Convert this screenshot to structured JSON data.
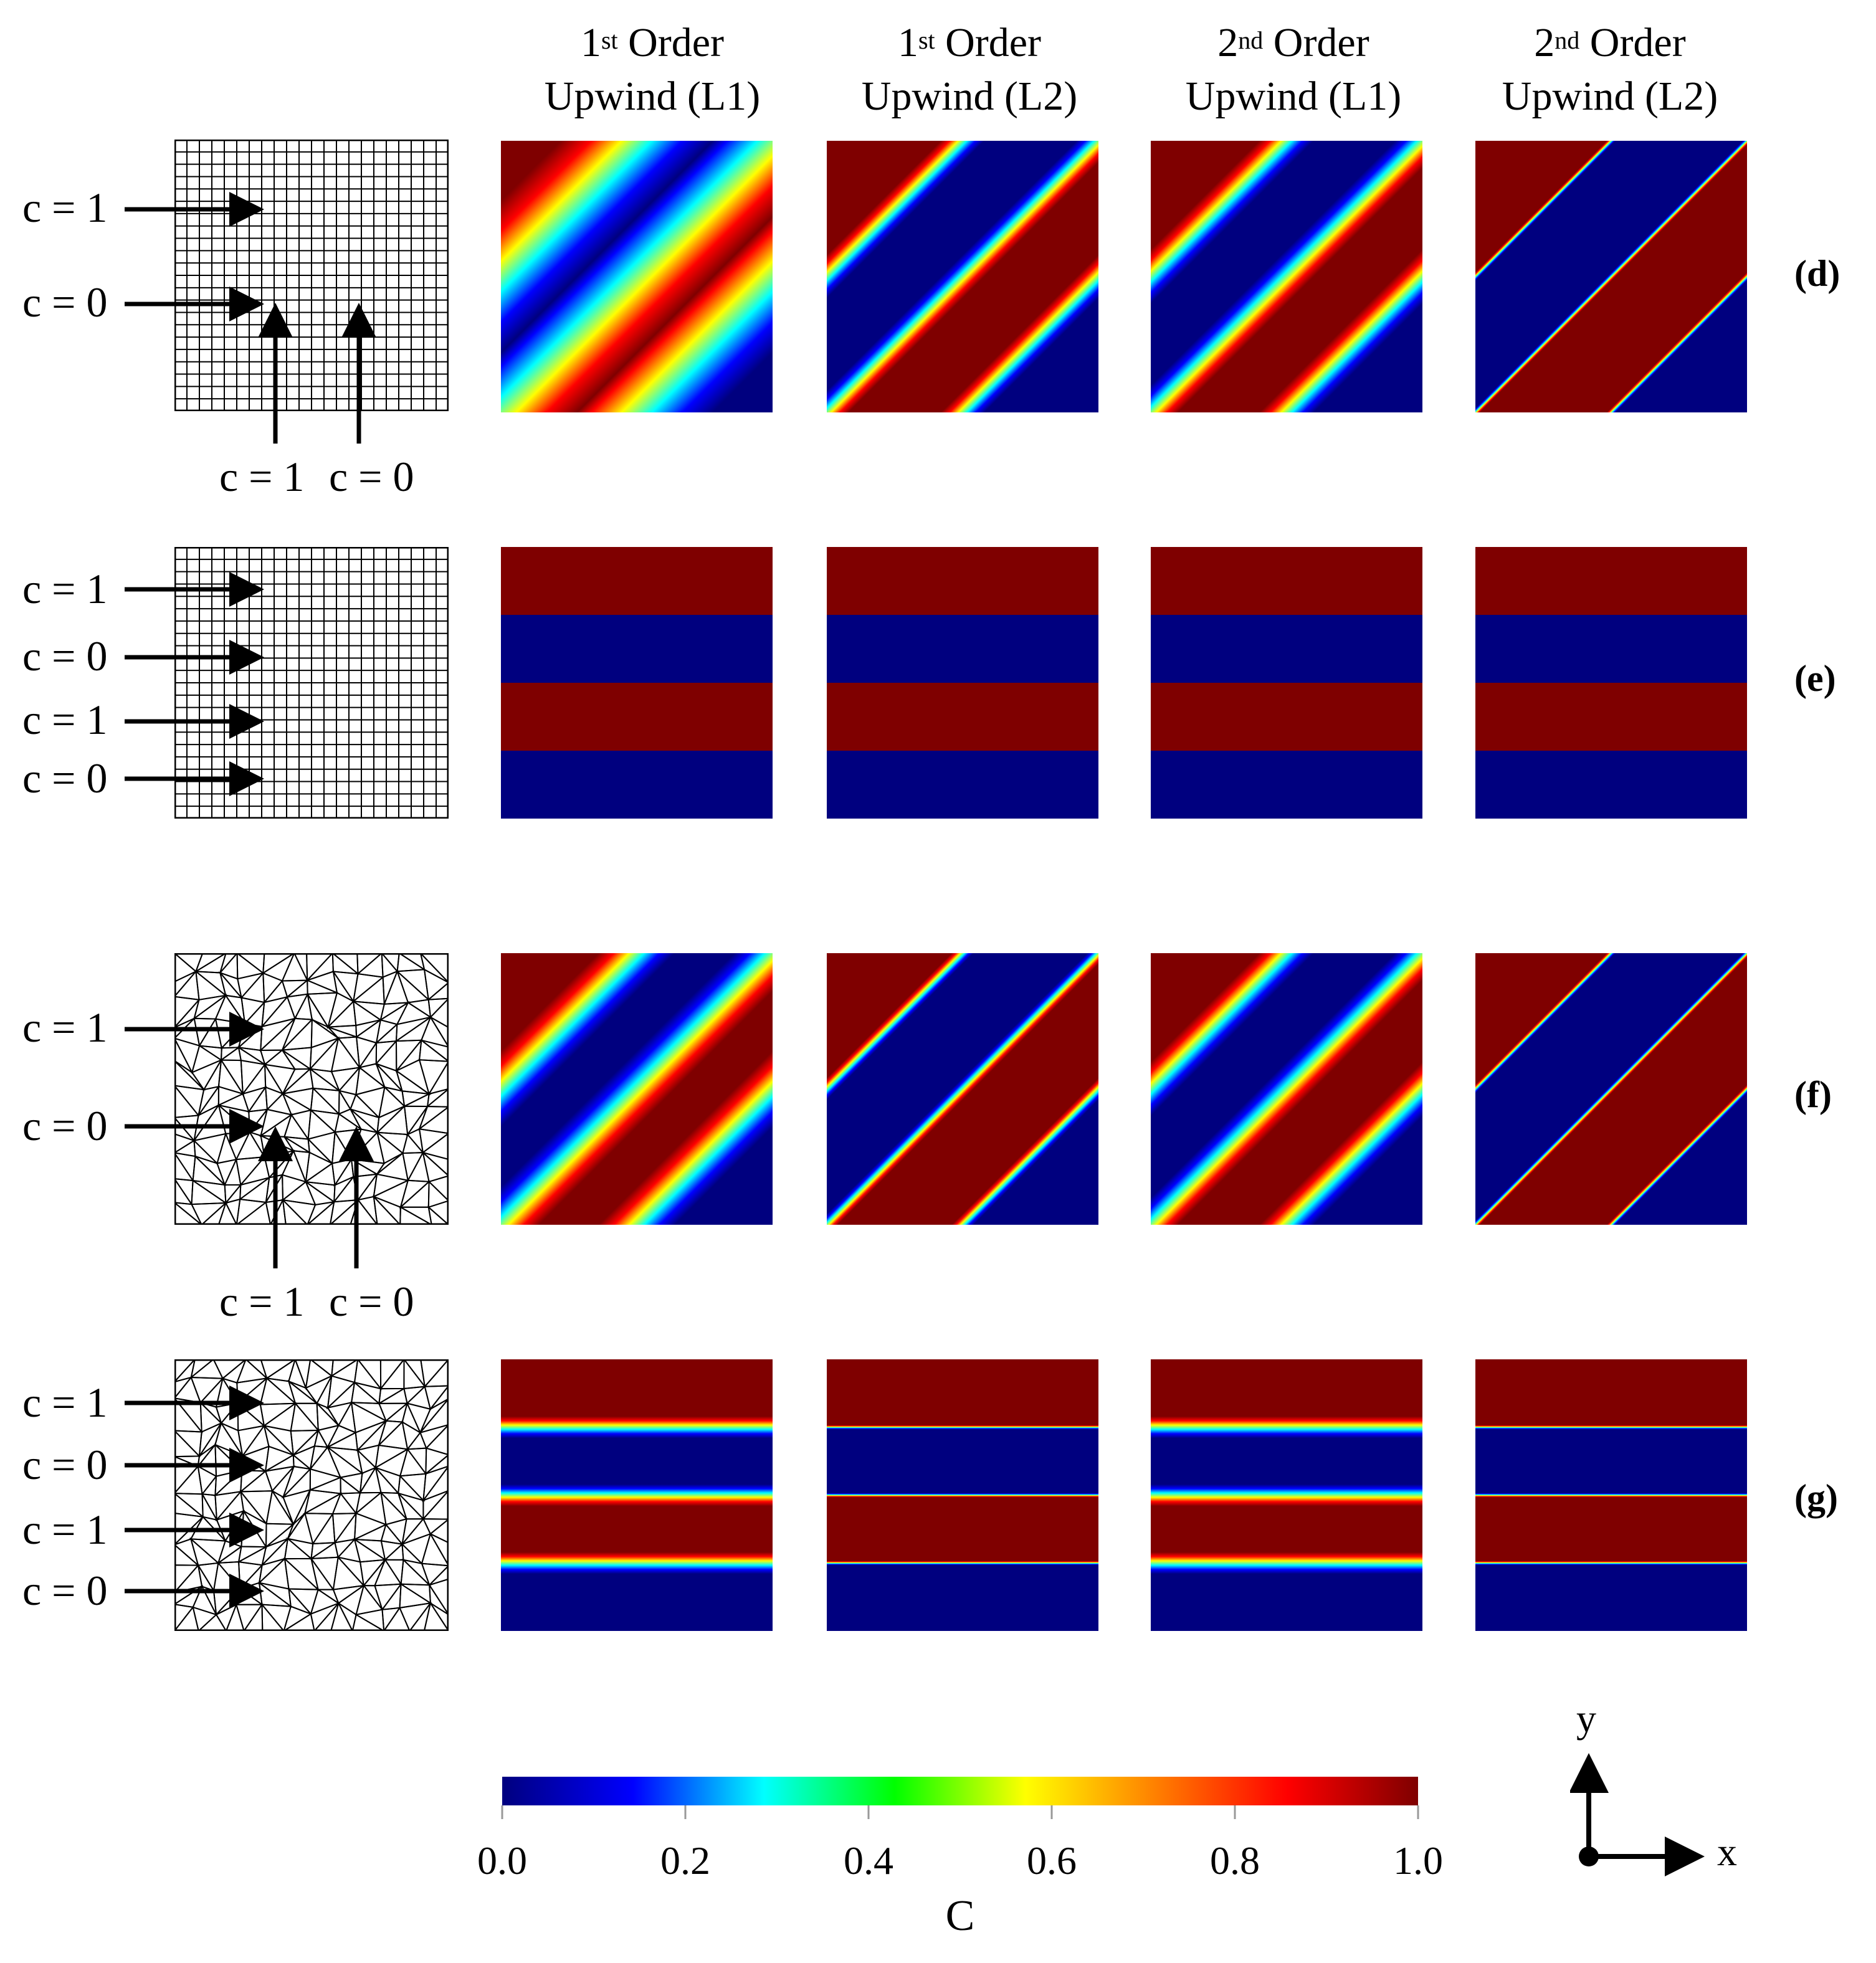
{
  "columns": [
    {
      "sup_num": "1",
      "sup": "st",
      "word": "Order",
      "line2": "Upwind (L1)"
    },
    {
      "sup_num": "1",
      "sup": "st",
      "word": "Order",
      "line2": "Upwind (L2)"
    },
    {
      "sup_num": "2",
      "sup": "nd",
      "word": "Order",
      "line2": "Upwind (L1)"
    },
    {
      "sup_num": "2",
      "sup": "nd",
      "word": "Order",
      "line2": "Upwind (L2)"
    }
  ],
  "rows": [
    {
      "label": "(d)",
      "mesh": "structured",
      "pattern": "diagonal",
      "left_labels": [
        "c = 1",
        "c = 0"
      ],
      "bottom_labels": [
        "c = 1",
        "c = 0"
      ]
    },
    {
      "label": "(e)",
      "mesh": "structured",
      "pattern": "horizontal",
      "left_labels": [
        "c = 1",
        "c = 0",
        "c = 1",
        "c = 0"
      ]
    },
    {
      "label": "(f)",
      "mesh": "unstructured",
      "pattern": "diagonal",
      "left_labels": [
        "c = 1",
        "c = 0"
      ],
      "bottom_labels": [
        "c = 1",
        "c = 0"
      ]
    },
    {
      "label": "(g)",
      "mesh": "unstructured",
      "pattern": "horizontal",
      "left_labels": [
        "c = 1",
        "c = 0",
        "c = 1",
        "c = 0"
      ]
    }
  ],
  "colorbar": {
    "label": "C",
    "ticks": [
      "0.0",
      "0.2",
      "0.4",
      "0.6",
      "0.8",
      "1.0"
    ],
    "min": 0.0,
    "max": 1.0,
    "colors": [
      "#00007f",
      "#0000ff",
      "#00ffff",
      "#00ff00",
      "#ffff00",
      "#ff7f00",
      "#ff0000",
      "#7f0000"
    ]
  },
  "axes": {
    "x": "x",
    "y": "y"
  }
}
